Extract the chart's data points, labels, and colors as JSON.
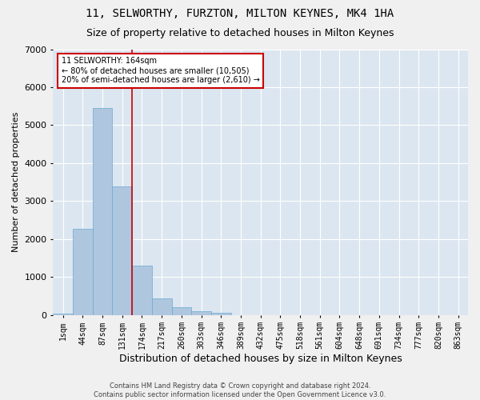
{
  "title": "11, SELWORTHY, FURZTON, MILTON KEYNES, MK4 1HA",
  "subtitle": "Size of property relative to detached houses in Milton Keynes",
  "xlabel": "Distribution of detached houses by size in Milton Keynes",
  "ylabel": "Number of detached properties",
  "footer_line1": "Contains HM Land Registry data © Crown copyright and database right 2024.",
  "footer_line2": "Contains public sector information licensed under the Open Government Licence v3.0.",
  "categories": [
    "1sqm",
    "44sqm",
    "87sqm",
    "131sqm",
    "174sqm",
    "217sqm",
    "260sqm",
    "303sqm",
    "346sqm",
    "389sqm",
    "432sqm",
    "475sqm",
    "518sqm",
    "561sqm",
    "604sqm",
    "648sqm",
    "691sqm",
    "734sqm",
    "777sqm",
    "820sqm",
    "863sqm"
  ],
  "values": [
    30,
    2270,
    5450,
    3380,
    1290,
    430,
    200,
    100,
    50,
    0,
    0,
    0,
    0,
    0,
    0,
    0,
    0,
    0,
    0,
    0,
    0
  ],
  "bar_color": "#aec6de",
  "bar_edge_color": "#6aaad4",
  "vline_color": "#cc0000",
  "annotation_text_line1": "11 SELWORTHY: 164sqm",
  "annotation_text_line2": "← 80% of detached houses are smaller (10,505)",
  "annotation_text_line3": "20% of semi-detached houses are larger (2,610) →",
  "annotation_box_color": "#cc0000",
  "ylim": [
    0,
    7000
  ],
  "plot_bg_color": "#dce6f0",
  "grid_color": "#ffffff",
  "title_fontsize": 10,
  "subtitle_fontsize": 9,
  "ylabel_fontsize": 8,
  "xlabel_fontsize": 9,
  "tick_fontsize": 7,
  "footer_fontsize": 6,
  "annotation_fontsize": 7
}
